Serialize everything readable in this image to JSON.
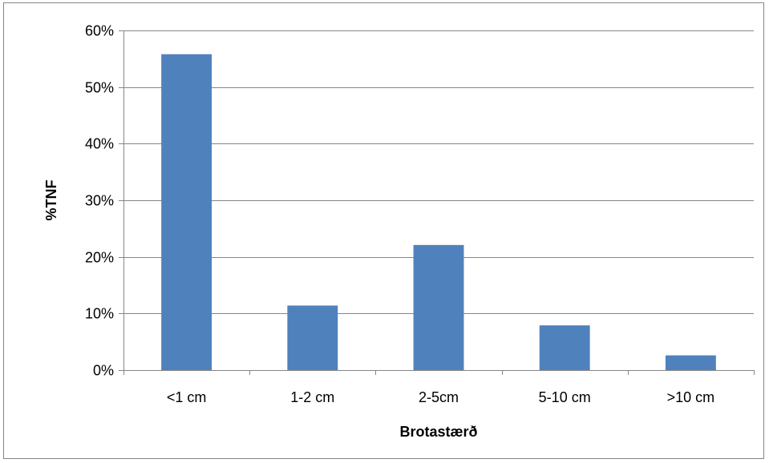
{
  "chart_data": {
    "type": "bar",
    "categories": [
      "<1 cm",
      "1-2 cm",
      "2-5cm",
      "5-10 cm",
      ">10 cm"
    ],
    "values": [
      0.558,
      0.114,
      0.221,
      0.079,
      0.026
    ],
    "ylim": [
      0,
      0.6
    ],
    "yticks": [
      0,
      0.1,
      0.2,
      0.3,
      0.4,
      0.5,
      0.6
    ],
    "ytick_labels": [
      "0%",
      "10%",
      "20%",
      "30%",
      "40%",
      "50%",
      "60%"
    ],
    "xlabel": "Brotastærð",
    "ylabel": "%TNF",
    "grid": true,
    "legend": "none",
    "bar_color": "#4f81bd",
    "gridline_color": "#868686"
  }
}
